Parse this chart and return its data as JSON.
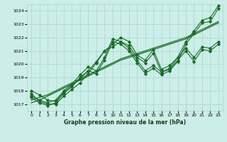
{
  "title": "Graphe pression niveau de la mer (hPa)",
  "bg_color": "#cceee8",
  "grid_color": "#aad4ce",
  "line_color": "#1a6b2a",
  "xlim": [
    -0.5,
    23.5
  ],
  "ylim": [
    1016.5,
    1024.5
  ],
  "yticks": [
    1017,
    1018,
    1019,
    1020,
    1021,
    1022,
    1023,
    1024
  ],
  "xticks": [
    0,
    1,
    2,
    3,
    4,
    5,
    6,
    7,
    8,
    9,
    10,
    11,
    12,
    13,
    14,
    15,
    16,
    17,
    18,
    19,
    20,
    21,
    22,
    23
  ],
  "series": [
    [
      1017.8,
      1017.2,
      1017.0,
      1017.0,
      1017.6,
      1018.1,
      1018.6,
      1019.3,
      1020.1,
      1021.0,
      1021.3,
      1021.7,
      1021.4,
      1020.5,
      1020.1,
      1020.8,
      1019.4,
      1019.6,
      1020.3,
      1021.0,
      1020.2,
      1021.1,
      1021.0,
      1021.5
    ],
    [
      1018.0,
      1017.7,
      1017.3,
      1017.2,
      1017.9,
      1018.4,
      1018.9,
      1019.5,
      1020.2,
      1021.0,
      1021.5,
      1022.0,
      1021.7,
      1020.7,
      1020.3,
      1021.1,
      1019.6,
      1019.9,
      1020.5,
      1021.2,
      1020.5,
      1021.3,
      1021.2,
      1021.7
    ],
    [
      1017.5,
      1017.1,
      1016.9,
      1017.1,
      1017.8,
      1018.3,
      1019.0,
      1019.5,
      1019.3,
      1020.3,
      1021.7,
      1021.5,
      1021.0,
      1020.1,
      1019.3,
      1019.7,
      1019.2,
      1019.5,
      1020.2,
      1021.5,
      1022.3,
      1023.1,
      1023.2,
      1024.2
    ],
    [
      1017.6,
      1017.3,
      1017.1,
      1017.3,
      1018.0,
      1018.5,
      1019.2,
      1019.8,
      1019.5,
      1020.5,
      1021.9,
      1021.7,
      1021.2,
      1020.3,
      1019.5,
      1019.9,
      1019.4,
      1019.7,
      1020.5,
      1021.7,
      1022.5,
      1023.3,
      1023.5,
      1024.4
    ]
  ],
  "smooth_series": [
    [
      1017.3,
      1017.5,
      1017.7,
      1018.0,
      1018.3,
      1018.6,
      1018.9,
      1019.2,
      1019.5,
      1019.8,
      1020.1,
      1020.4,
      1020.6,
      1020.8,
      1021.0,
      1021.2,
      1021.4,
      1021.6,
      1021.8,
      1022.0,
      1022.3,
      1022.6,
      1022.9,
      1023.2
    ],
    [
      1017.1,
      1017.3,
      1017.6,
      1017.9,
      1018.2,
      1018.5,
      1018.8,
      1019.1,
      1019.4,
      1019.7,
      1020.0,
      1020.3,
      1020.5,
      1020.7,
      1020.9,
      1021.1,
      1021.3,
      1021.5,
      1021.7,
      1021.9,
      1022.2,
      1022.5,
      1022.8,
      1023.1
    ]
  ]
}
